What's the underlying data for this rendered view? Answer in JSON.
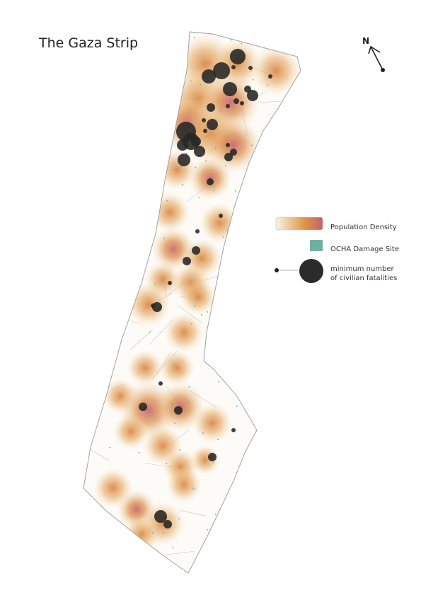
{
  "header": {
    "title": "The Gaza Strip"
  },
  "compass": {
    "label": "N"
  },
  "legend": {
    "population_density": "Population Density",
    "damage_site": "OCHA Damage Site",
    "fatalities": [
      "minimum number",
      "of civilian fatalities"
    ]
  }
}
